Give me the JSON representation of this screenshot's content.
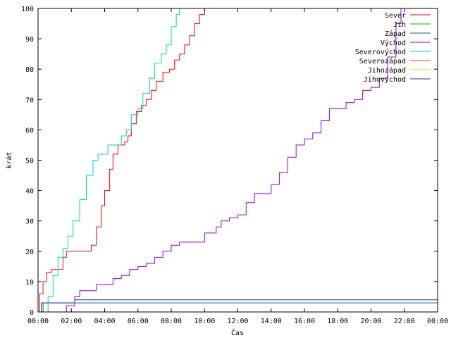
{
  "chart_data": {
    "type": "line",
    "title": "",
    "xlabel": "Čas",
    "ylabel": "krát",
    "xlim": [
      0,
      24
    ],
    "ylim": [
      0,
      100
    ],
    "x_tick_labels": [
      "00:00",
      "02:00",
      "04:00",
      "06:00",
      "08:00",
      "10:00",
      "12:00",
      "14:00",
      "16:00",
      "18:00",
      "20:00",
      "22:00",
      "00:00"
    ],
    "y_tick_labels": [
      "0",
      "10",
      "20",
      "30",
      "40",
      "50",
      "60",
      "70",
      "80",
      "90",
      "100"
    ],
    "grid": false,
    "legend_position": "top-right",
    "series": [
      {
        "name": "Sever",
        "color": "#ff0000",
        "points": [
          [
            0,
            0
          ],
          [
            0.1,
            6
          ],
          [
            0.3,
            10
          ],
          [
            0.5,
            13
          ],
          [
            0.8,
            14
          ],
          [
            1.2,
            14
          ],
          [
            1.5,
            18
          ],
          [
            1.7,
            20
          ],
          [
            2.2,
            20
          ],
          [
            2.9,
            20
          ],
          [
            3.2,
            22
          ],
          [
            3.5,
            28
          ],
          [
            3.8,
            35
          ],
          [
            4.0,
            40
          ],
          [
            4.3,
            47
          ],
          [
            4.5,
            52
          ],
          [
            4.8,
            55
          ],
          [
            5.2,
            56
          ],
          [
            5.4,
            58
          ],
          [
            5.6,
            62
          ],
          [
            5.9,
            66
          ],
          [
            6.2,
            68
          ],
          [
            6.5,
            70
          ],
          [
            6.8,
            73
          ],
          [
            7.1,
            76
          ],
          [
            7.5,
            79
          ],
          [
            7.9,
            80
          ],
          [
            8.2,
            83
          ],
          [
            8.5,
            85
          ],
          [
            8.8,
            88
          ],
          [
            9.1,
            91
          ],
          [
            9.4,
            95
          ],
          [
            9.7,
            98
          ],
          [
            10.0,
            100
          ]
        ]
      },
      {
        "name": "Jih",
        "color": "#00b000",
        "points": []
      },
      {
        "name": "Západ",
        "color": "#0060ad",
        "points": [
          [
            0,
            0
          ],
          [
            0.25,
            0
          ],
          [
            0.3,
            3
          ],
          [
            24,
            3
          ]
        ]
      },
      {
        "name": "Východ",
        "color": "#9400d3",
        "points": [
          [
            1.6,
            0
          ],
          [
            1.7,
            2
          ],
          [
            2.0,
            2
          ],
          [
            2.2,
            5
          ],
          [
            2.5,
            7
          ],
          [
            3.0,
            7
          ],
          [
            3.5,
            9
          ],
          [
            4.0,
            9
          ],
          [
            4.5,
            11
          ],
          [
            5.0,
            12
          ],
          [
            5.5,
            14
          ],
          [
            6.0,
            15
          ],
          [
            6.5,
            16
          ],
          [
            7.0,
            18
          ],
          [
            7.5,
            20
          ],
          [
            8.0,
            22
          ],
          [
            8.5,
            23
          ],
          [
            9.5,
            23
          ],
          [
            10.0,
            26
          ],
          [
            10.7,
            28
          ],
          [
            11.0,
            30
          ],
          [
            11.5,
            31
          ],
          [
            12.0,
            32
          ],
          [
            12.5,
            36
          ],
          [
            13.0,
            39
          ],
          [
            13.5,
            39
          ],
          [
            14.0,
            42
          ],
          [
            14.5,
            46
          ],
          [
            15.0,
            51
          ],
          [
            15.5,
            55
          ],
          [
            16.0,
            57
          ],
          [
            16.5,
            59
          ],
          [
            17.0,
            63
          ],
          [
            17.5,
            67
          ],
          [
            18.0,
            67
          ],
          [
            18.5,
            69
          ],
          [
            19.0,
            70
          ],
          [
            19.5,
            73
          ],
          [
            20.0,
            74
          ],
          [
            20.5,
            77
          ],
          [
            21.0,
            84
          ],
          [
            21.5,
            95
          ],
          [
            21.8,
            100
          ]
        ]
      },
      {
        "name": "Severovýchod",
        "color": "#00d0d0",
        "points": [
          [
            0.4,
            0
          ],
          [
            0.6,
            5
          ],
          [
            0.9,
            12
          ],
          [
            1.2,
            18
          ],
          [
            1.5,
            21
          ],
          [
            1.8,
            25
          ],
          [
            2.1,
            30
          ],
          [
            2.5,
            37
          ],
          [
            2.9,
            45
          ],
          [
            3.3,
            50
          ],
          [
            3.6,
            52
          ],
          [
            4.0,
            52
          ],
          [
            4.2,
            55
          ],
          [
            4.8,
            55
          ],
          [
            5.0,
            58
          ],
          [
            5.3,
            60
          ],
          [
            5.6,
            65
          ],
          [
            6.0,
            67
          ],
          [
            6.3,
            72
          ],
          [
            6.7,
            77
          ],
          [
            7.0,
            82
          ],
          [
            7.4,
            85
          ],
          [
            7.7,
            88
          ],
          [
            8.0,
            94
          ],
          [
            8.3,
            98
          ],
          [
            8.5,
            100
          ]
        ]
      },
      {
        "name": "Severozápad",
        "color": "#c05020",
        "points": []
      },
      {
        "name": "Jihozápad",
        "color": "#e0e000",
        "points": []
      },
      {
        "name": "Jihovýchod",
        "color": "#303090",
        "points": [
          [
            0,
            0
          ],
          [
            0.15,
            0
          ],
          [
            0.2,
            3
          ],
          [
            2.0,
            3
          ],
          [
            2.2,
            4
          ],
          [
            24,
            4
          ]
        ]
      }
    ]
  }
}
